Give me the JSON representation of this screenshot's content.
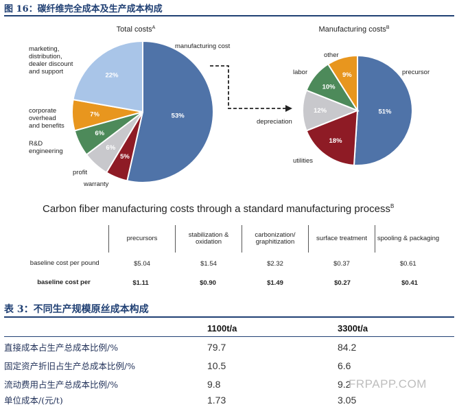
{
  "figure": {
    "title": "图 16：碳纤维完全成本及生产成本构成"
  },
  "chart_data": [
    {
      "type": "pie",
      "title": "Total costs",
      "title_sup": "A",
      "slices": [
        {
          "label": "manufacturing cost",
          "value": 53,
          "pct_label": "53%",
          "color": "#4f73a8"
        },
        {
          "label": "warranty",
          "value": 5,
          "pct_label": "5%",
          "color": "#8e1b25"
        },
        {
          "label": "profit",
          "value": 6,
          "pct_label": "6%",
          "color": "#c8c8cc"
        },
        {
          "label": "R&D engineering",
          "value": 6,
          "pct_label": "6%",
          "color": "#4d8a5a"
        },
        {
          "label": "corporate overhead and benefits",
          "value": 7,
          "pct_label": "7%",
          "color": "#e8961e"
        },
        {
          "label": "marketing, distribution, dealer discount and support",
          "value": 22,
          "pct_label": "22%",
          "color": "#a9c5e8"
        }
      ]
    },
    {
      "type": "pie",
      "title": "Manufacturing costs",
      "title_sup": "B",
      "slices": [
        {
          "label": "precursor",
          "value": 51,
          "pct_label": "51%",
          "color": "#4f73a8"
        },
        {
          "label": "utilities",
          "value": 18,
          "pct_label": "18%",
          "color": "#8e1b25"
        },
        {
          "label": "depreciation",
          "value": 12,
          "pct_label": "12%",
          "color": "#c8c8cc"
        },
        {
          "label": "labor",
          "value": 10,
          "pct_label": "10%",
          "color": "#4d8a5a"
        },
        {
          "label": "other",
          "value": 9,
          "pct_label": "9%",
          "color": "#e8961e"
        }
      ]
    },
    {
      "type": "table",
      "title": "Carbon fiber manufacturing costs through a standard manufacturing process",
      "title_sup": "B",
      "columns": [
        "precursors",
        "stabilization & oxidation",
        "carbonization/ graphitization",
        "surface treatment",
        "spooling & packaging"
      ],
      "rows": [
        {
          "label": "baseline cost per pound",
          "values": [
            "$5.04",
            "$1.54",
            "$2.32",
            "$0.37",
            "$0.61"
          ]
        },
        {
          "label": "baseline cost per",
          "values": [
            "$1.11",
            "$0.90",
            "$1.49",
            "$0.27",
            "$0.41"
          ]
        }
      ]
    },
    {
      "type": "table",
      "title": "表 3：不同生产规模原丝成本构成",
      "columns": [
        "",
        "1100t/a",
        "3300t/a"
      ],
      "rows": [
        {
          "label": "直接成本占生产总成本比例/%",
          "values": [
            "79.7",
            "84.2"
          ]
        },
        {
          "label": "固定资产折旧占生产总成本比例/%",
          "values": [
            "10.5",
            "6.6"
          ]
        },
        {
          "label": "流动费用占生产总成本比例/%",
          "values": [
            "9.8",
            "9.2"
          ]
        },
        {
          "label": "单位成本/(元/t)",
          "values": [
            "1.73",
            "3.05"
          ]
        }
      ]
    }
  ],
  "watermark": "FRPAPP.COM"
}
